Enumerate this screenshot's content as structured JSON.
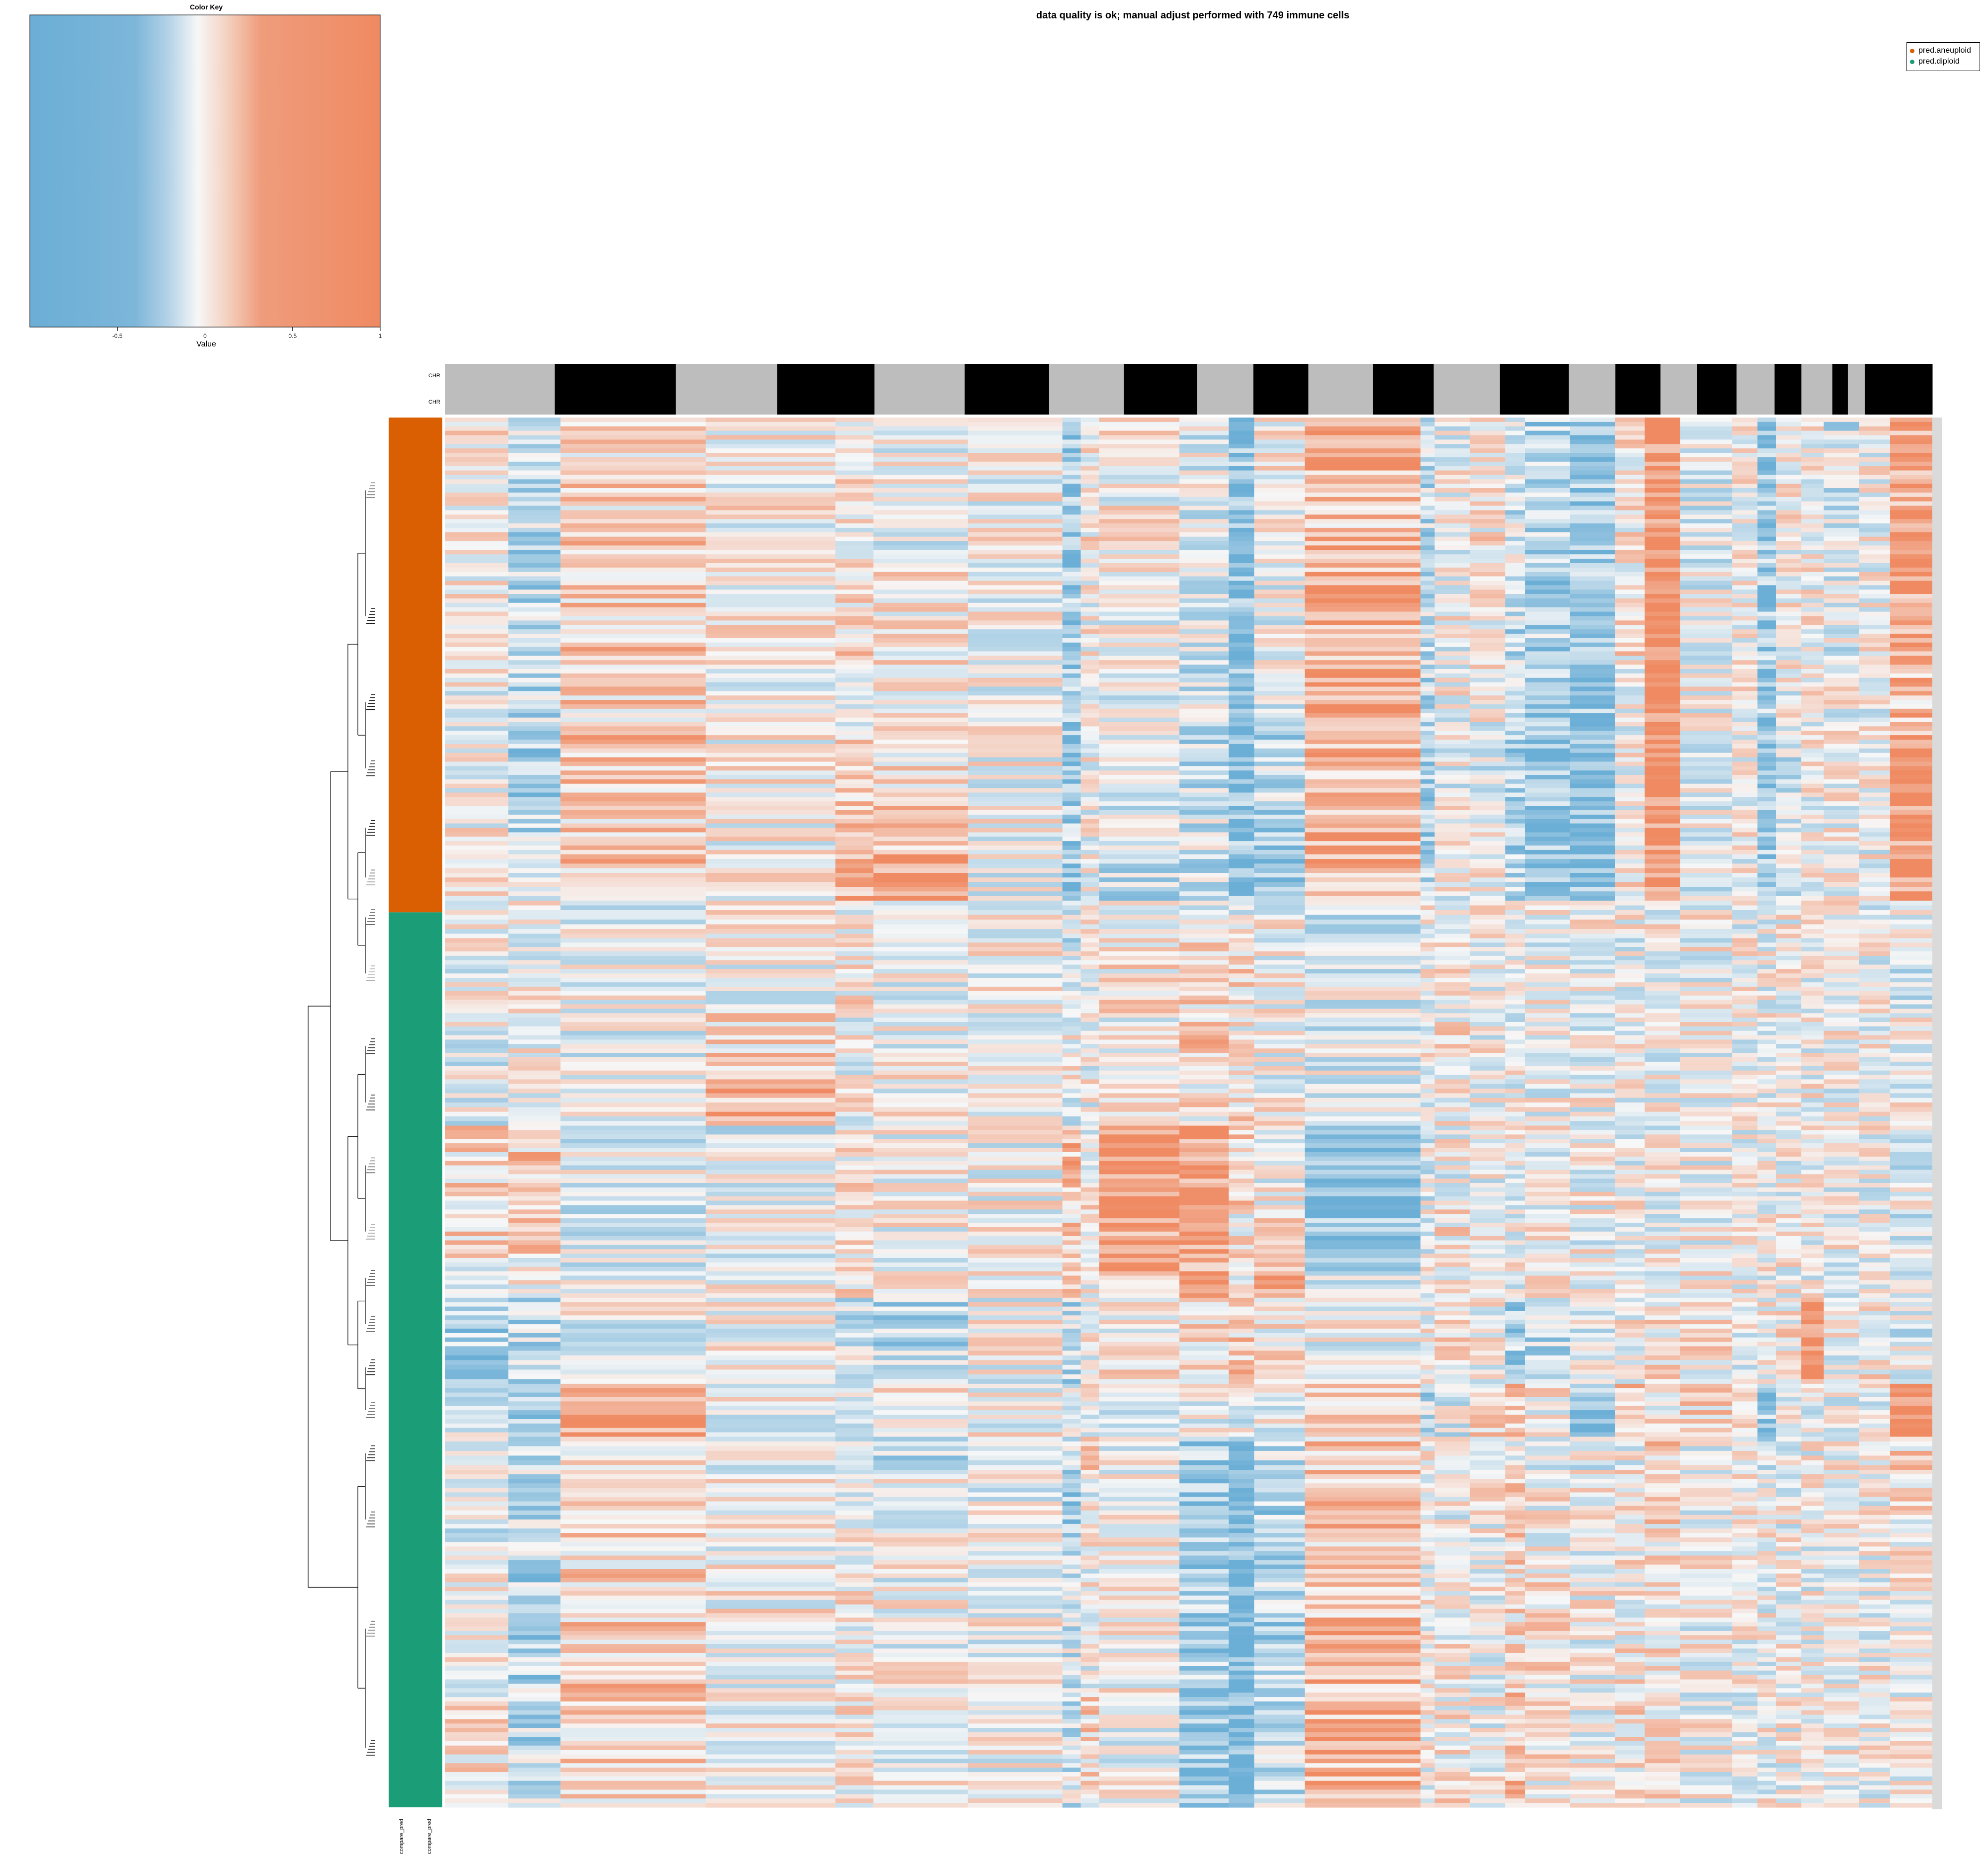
{
  "chart_data": {
    "type": "heatmap",
    "title": "data quality is ok; manual adjust performed with 749 immune cells",
    "color_key": {
      "title": "Color Key",
      "xlabel": "Value",
      "ticks": [
        "-0.5",
        "0",
        "0.5",
        "1"
      ],
      "range": [
        -1,
        1
      ],
      "low_color": "#6BAED6",
      "mid_color": "#F7F7F7",
      "high_color": "#EF8A62"
    },
    "column_annotation": {
      "labels": [
        "CHR",
        "CHR"
      ],
      "colors": [
        "#BDBDBD",
        "#000000"
      ],
      "segment_weights": [
        7.8,
        8.6,
        7.2,
        6.9,
        6.4,
        6.0,
        5.3,
        5.2,
        4.0,
        3.9,
        4.6,
        4.3,
        4.7,
        4.9,
        3.3,
        3.2,
        2.6,
        2.8,
        2.7,
        1.9,
        2.2,
        1.1,
        1.2,
        4.8
      ]
    },
    "row_annotation": {
      "labels": [
        "compare_pred",
        "compare_pred"
      ],
      "classes": [
        "pred.aneuploid",
        "pred.diploid"
      ],
      "colors": [
        "#D95F02",
        "#1B9E77"
      ],
      "fractions": [
        0.356,
        0.644
      ]
    },
    "legend": [
      {
        "label": "pred.aneuploid",
        "color": "#D95F02"
      },
      {
        "label": "pred.diploid",
        "color": "#1B9E77"
      }
    ],
    "block_profile": {
      "column_block_weights": [
        4.5,
        3.7,
        10.3,
        9.2,
        2.7,
        6.7,
        6.7,
        1.3,
        1.3,
        5.7,
        3.5,
        1.8,
        3.6,
        8.2,
        1.0,
        2.5,
        2.5,
        1.4,
        3.2,
        3.2,
        2.1,
        2.5,
        3.7,
        1.8,
        1.3,
        1.8,
        1.6,
        2.5,
        2.2,
        3.0
      ],
      "row_group_fractions": [
        0.11,
        0.08,
        0.05,
        0.05,
        0.04,
        0.035,
        0.025,
        0.06,
        0.05,
        0.035,
        0.06,
        0.04,
        0.03,
        0.04,
        0.025,
        0.04,
        0.025,
        0.075,
        0.09,
        0.09
      ],
      "mean_values": [
        [
          0.05,
          -0.3,
          0.25,
          0.05,
          0.1,
          -0.05,
          0.0,
          -0.5,
          0.1,
          0.05,
          -0.1,
          -0.5,
          0.05,
          0.4,
          -0.3,
          0.0,
          0.1,
          -0.2,
          -0.4,
          -0.5,
          0.1,
          0.8,
          -0.1,
          0.1,
          -0.5,
          0.05,
          0.05,
          -0.2,
          0.0,
          0.6
        ],
        [
          0.05,
          -0.3,
          0.3,
          0.05,
          0.2,
          0.1,
          0.0,
          -0.45,
          0.05,
          0.0,
          -0.1,
          -0.6,
          -0.05,
          0.45,
          -0.3,
          0.0,
          0.1,
          -0.3,
          -0.4,
          -0.55,
          0.15,
          0.85,
          -0.05,
          0.05,
          -0.5,
          0.0,
          0.05,
          -0.1,
          0.05,
          0.55
        ],
        [
          0.0,
          -0.3,
          0.25,
          0.0,
          0.1,
          0.0,
          0.0,
          -0.4,
          0.0,
          -0.1,
          -0.2,
          -0.55,
          -0.1,
          0.5,
          -0.3,
          0.0,
          0.0,
          -0.3,
          -0.4,
          -0.5,
          0.0,
          0.8,
          0.0,
          0.0,
          -0.5,
          0.0,
          0.0,
          0.0,
          0.0,
          0.4
        ],
        [
          0.0,
          -0.5,
          0.35,
          0.05,
          0.2,
          0.2,
          0.0,
          -0.6,
          0.0,
          -0.2,
          -0.3,
          -0.75,
          -0.3,
          0.4,
          -0.5,
          -0.1,
          -0.2,
          -0.5,
          -0.6,
          -0.7,
          0.0,
          0.85,
          -0.1,
          0.0,
          -0.6,
          -0.2,
          0.0,
          0.0,
          0.0,
          0.8
        ],
        [
          0.05,
          -0.3,
          0.3,
          0.0,
          0.45,
          0.45,
          0.0,
          -0.45,
          0.0,
          -0.2,
          -0.2,
          -0.6,
          -0.55,
          0.45,
          -0.4,
          0.0,
          0.0,
          -0.35,
          -0.55,
          -0.65,
          0.1,
          0.8,
          -0.1,
          0.0,
          -0.55,
          -0.1,
          0.0,
          0.0,
          0.0,
          0.7
        ],
        [
          0.0,
          -0.2,
          0.35,
          0.05,
          0.55,
          0.6,
          -0.05,
          -0.5,
          0.0,
          -0.25,
          -0.3,
          -0.6,
          -0.6,
          0.45,
          -0.4,
          0.0,
          0.0,
          -0.35,
          -0.5,
          -0.6,
          0.1,
          0.8,
          -0.1,
          0.0,
          -0.55,
          -0.1,
          0.0,
          0.0,
          0.0,
          0.7
        ],
        [
          0.0,
          0.0,
          -0.05,
          0.0,
          0.1,
          -0.1,
          0.0,
          -0.1,
          0.0,
          0.0,
          0.0,
          0.0,
          0.0,
          -0.2,
          0.0,
          0.0,
          0.0,
          0.0,
          0.0,
          0.0,
          0.0,
          0.0,
          0.0,
          0.0,
          0.0,
          0.0,
          0.0,
          0.0,
          0.0,
          0.0
        ],
        [
          -0.05,
          0.0,
          -0.05,
          0.0,
          0.1,
          -0.05,
          0.0,
          -0.2,
          0.0,
          0.1,
          0.2,
          0.2,
          0.0,
          -0.1,
          0.0,
          0.1,
          0.0,
          0.0,
          0.0,
          0.0,
          -0.1,
          0.0,
          0.0,
          0.0,
          0.0,
          0.0,
          0.0,
          0.0,
          0.0,
          -0.1
        ],
        [
          -0.1,
          0.0,
          -0.05,
          0.2,
          0.0,
          0.0,
          0.0,
          0.0,
          0.0,
          0.0,
          0.25,
          0.1,
          0.0,
          -0.1,
          0.0,
          0.1,
          0.0,
          0.0,
          0.0,
          0.0,
          0.0,
          0.0,
          0.0,
          0.0,
          0.0,
          0.0,
          0.0,
          0.0,
          0.0,
          0.0
        ],
        [
          -0.1,
          0.0,
          -0.1,
          0.45,
          0.05,
          0.05,
          0.0,
          -0.1,
          0.0,
          0.0,
          0.1,
          0.2,
          0.05,
          -0.15,
          0.0,
          0.1,
          0.0,
          0.0,
          0.0,
          0.0,
          0.0,
          0.0,
          0.0,
          0.0,
          0.0,
          0.0,
          0.0,
          0.0,
          0.0,
          0.0
        ],
        [
          0.2,
          0.3,
          -0.1,
          -0.1,
          0.1,
          0.0,
          0.0,
          0.4,
          0.0,
          0.75,
          0.7,
          0.2,
          0.0,
          -0.6,
          -0.1,
          0.0,
          0.0,
          0.0,
          0.0,
          0.0,
          0.0,
          0.0,
          0.0,
          0.0,
          0.0,
          0.0,
          0.0,
          0.0,
          0.0,
          -0.1
        ],
        [
          0.2,
          0.3,
          -0.1,
          -0.1,
          0.1,
          0.0,
          0.0,
          0.3,
          0.1,
          0.6,
          0.65,
          0.1,
          0.3,
          -0.55,
          0.0,
          0.1,
          0.0,
          0.0,
          0.0,
          0.0,
          0.0,
          0.0,
          0.0,
          0.0,
          0.0,
          0.0,
          0.0,
          0.0,
          0.0,
          -0.1
        ],
        [
          0.1,
          0.1,
          -0.1,
          0.0,
          0.1,
          0.0,
          0.0,
          0.2,
          0.0,
          0.4,
          0.4,
          0.1,
          0.4,
          -0.2,
          0.0,
          0.0,
          0.0,
          0.0,
          0.0,
          0.0,
          0.0,
          0.0,
          0.0,
          0.0,
          0.0,
          0.0,
          0.0,
          0.0,
          0.0,
          0.0
        ],
        [
          -0.4,
          -0.3,
          -0.05,
          0.0,
          -0.2,
          -0.3,
          0.0,
          -0.3,
          0.0,
          0.1,
          0.2,
          0.3,
          0.1,
          0.0,
          0.0,
          0.1,
          0.0,
          -0.45,
          -0.3,
          -0.1,
          0.05,
          0.1,
          0.1,
          0.0,
          0.0,
          0.1,
          0.8,
          0.0,
          0.1,
          -0.1
        ],
        [
          -0.5,
          -0.3,
          -0.05,
          0.0,
          -0.2,
          -0.3,
          0.0,
          -0.3,
          0.0,
          0.1,
          0.2,
          0.3,
          0.1,
          0.0,
          0.0,
          0.1,
          0.0,
          -0.55,
          -0.3,
          -0.1,
          0.05,
          0.1,
          0.1,
          0.0,
          0.0,
          0.1,
          0.8,
          0.0,
          0.1,
          -0.1
        ],
        [
          -0.1,
          -0.5,
          0.7,
          0.0,
          0.0,
          0.1,
          0.0,
          0.0,
          0.0,
          0.0,
          0.0,
          -0.05,
          0.0,
          0.2,
          -0.3,
          -0.1,
          0.2,
          0.4,
          0.1,
          -0.6,
          0.4,
          0.1,
          0.2,
          0.3,
          -0.5,
          0.0,
          0.0,
          0.0,
          -0.1,
          0.9
        ],
        [
          0.0,
          -0.3,
          0.15,
          0.0,
          0.0,
          -0.3,
          0.0,
          -0.3,
          0.3,
          0.0,
          -0.5,
          -0.7,
          -0.3,
          0.3,
          0.0,
          0.0,
          0.0,
          0.1,
          0.0,
          -0.1,
          0.0,
          0.3,
          0.0,
          0.0,
          -0.2,
          0.0,
          0.0,
          0.0,
          0.0,
          0.2
        ],
        [
          -0.1,
          -0.3,
          0.25,
          0.0,
          0.0,
          0.0,
          0.0,
          -0.4,
          0.0,
          0.0,
          -0.5,
          -0.7,
          -0.4,
          0.35,
          0.0,
          0.0,
          0.0,
          0.2,
          0.05,
          0.0,
          0.1,
          0.2,
          0.0,
          0.0,
          0.0,
          0.0,
          0.0,
          0.0,
          0.0,
          0.1
        ],
        [
          0.0,
          -0.4,
          0.3,
          0.05,
          0.1,
          0.0,
          0.0,
          -0.2,
          0.0,
          0.0,
          -0.45,
          -0.8,
          -0.35,
          0.4,
          0.0,
          0.05,
          0.0,
          0.2,
          0.1,
          0.0,
          0.1,
          0.15,
          0.0,
          0.0,
          0.0,
          0.0,
          0.0,
          0.0,
          0.0,
          0.1
        ],
        [
          0.1,
          -0.3,
          0.2,
          0.0,
          0.1,
          0.0,
          0.0,
          -0.2,
          0.2,
          0.0,
          -0.55,
          -0.75,
          -0.3,
          0.45,
          0.0,
          0.1,
          0.0,
          0.35,
          0.1,
          0.0,
          0.15,
          0.2,
          0.0,
          0.0,
          0.0,
          0.0,
          0.0,
          0.0,
          0.0,
          0.0
        ]
      ]
    }
  }
}
